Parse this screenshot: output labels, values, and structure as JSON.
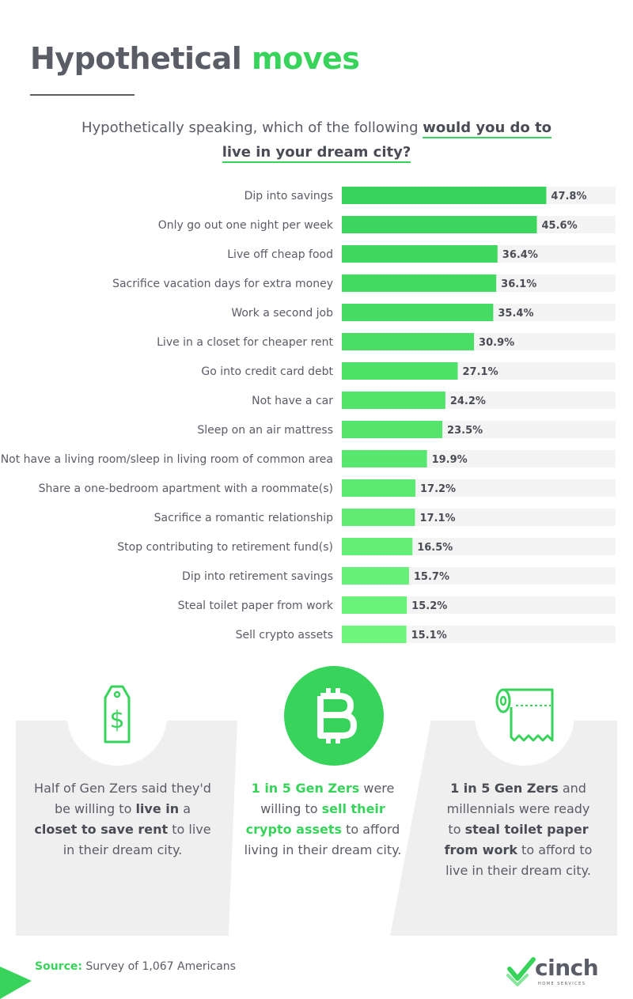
{
  "title": {
    "part1": "Hypothetical",
    "part2": "moves"
  },
  "subtitle": {
    "line1_plain": "Hypothetically speaking, which of the following ",
    "line1_bold": "would you do to",
    "line2_bold": "live in your dream city?"
  },
  "chart_data": {
    "type": "bar",
    "orientation": "horizontal",
    "xlim": [
      0,
      64
    ],
    "categories": [
      "Dip into savings",
      "Only go out one night per week",
      "Live off cheap food",
      "Sacrifice vacation days for extra money",
      "Work a second job",
      "Live in a closet for cheaper rent",
      "Go into credit card debt",
      "Not have a car",
      "Sleep on an air mattress",
      "Not have a living room/sleep in living room of common area",
      "Share a one-bedroom apartment with a roommate(s)",
      "Sacrifice a romantic relationship",
      "Stop contributing to retirement fund(s)",
      "Dip into retirement savings",
      "Steal toilet paper from work",
      "Sell crypto assets"
    ],
    "values": [
      47.8,
      45.6,
      36.4,
      36.1,
      35.4,
      30.9,
      27.1,
      24.2,
      23.5,
      19.9,
      17.2,
      17.1,
      16.5,
      15.7,
      15.2,
      15.1
    ],
    "value_labels": [
      "47.8%",
      "45.6%",
      "36.4%",
      "36.1%",
      "35.4%",
      "30.9%",
      "27.1%",
      "24.2%",
      "23.5%",
      "19.9%",
      "17.2%",
      "17.1%",
      "16.5%",
      "15.7%",
      "15.2%",
      "15.1%"
    ],
    "colors": {
      "bar_gradient_top": "#38d35b",
      "bar_gradient_bottom": "#6ef57b",
      "track": "#f4f4f4",
      "label": "#5a5c66",
      "value_label": "#4a4c55"
    }
  },
  "cards": [
    {
      "icon": "price-tag-icon",
      "pre": "Half of Gen Zers said they'd be willing to ",
      "b1": "live in",
      "mid": " a ",
      "b2": "closet to save rent",
      "post": " to live in their dream city."
    },
    {
      "icon": "bitcoin-icon",
      "g1": "1 in 5 Gen Zers",
      "mid": " were willing to ",
      "g2": "sell their crypto assets",
      "post": " to afford living in their dream city."
    },
    {
      "icon": "toilet-paper-icon",
      "b1": "1 in 5 Gen Zers",
      "mid": " and millennials were ready to ",
      "b2": "steal toilet paper from work",
      "post": " to afford to live in their dream city."
    }
  ],
  "source": {
    "label": "Source:",
    "text": " Survey of 1,067 Americans"
  },
  "logo": {
    "name": "cinch",
    "sub": "HOME SERVICES",
    "mark": "checkmark-logo-icon"
  },
  "colors": {
    "accent": "#38d35b",
    "text": "#5a5c66",
    "card_bg": "#efefef"
  }
}
